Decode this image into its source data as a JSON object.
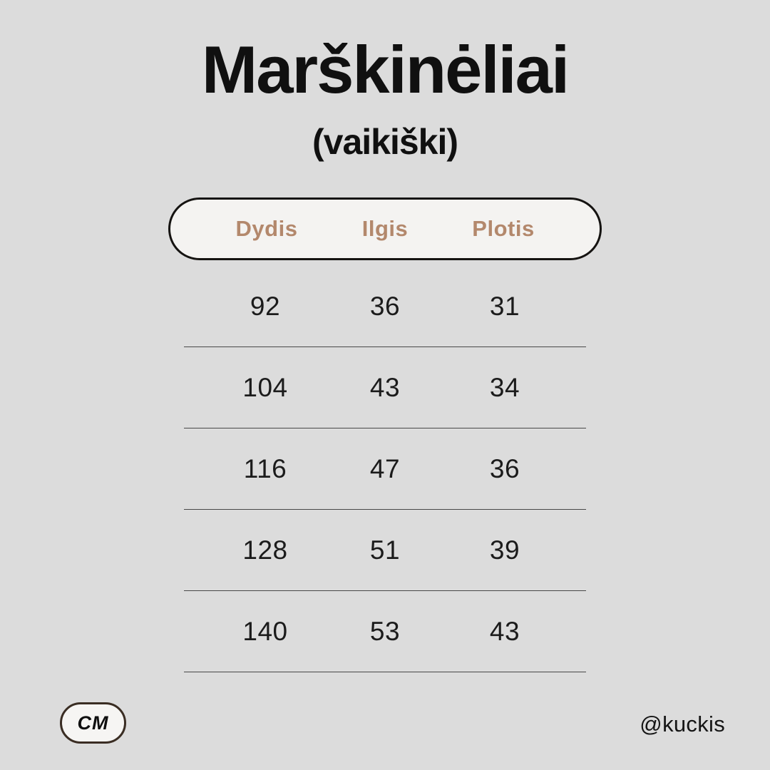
{
  "header": {
    "title": "Marškinėliai",
    "subtitle": "(vaikiški)"
  },
  "table": {
    "headers": [
      "Dydis",
      "Ilgis",
      "Plotis"
    ],
    "rows": [
      [
        "92",
        "36",
        "31"
      ],
      [
        "104",
        "43",
        "34"
      ],
      [
        "116",
        "47",
        "36"
      ],
      [
        "128",
        "51",
        "39"
      ],
      [
        "140",
        "53",
        "43"
      ]
    ]
  },
  "footer": {
    "unit_label": "CM",
    "credit": "@kuckis"
  },
  "colors": {
    "background": "#dcdcdc",
    "pill_background": "#f4f3f1",
    "pill_border": "#151311",
    "header_text": "#b3886c",
    "body_text": "#1b1b1b",
    "separator_line": "#484848",
    "badge_border": "#3a2d23"
  },
  "chart_data": {
    "type": "table",
    "title": "Marškinėliai",
    "subtitle": "(vaikiški)",
    "unit": "CM",
    "columns": [
      "Dydis",
      "Ilgis",
      "Plotis"
    ],
    "rows": [
      [
        92,
        36,
        31
      ],
      [
        104,
        43,
        34
      ],
      [
        116,
        47,
        36
      ],
      [
        128,
        51,
        39
      ],
      [
        140,
        53,
        43
      ]
    ]
  }
}
